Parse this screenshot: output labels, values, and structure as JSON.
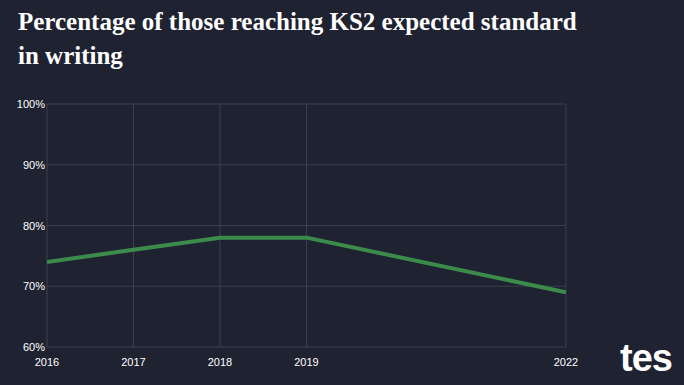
{
  "chart_data": {
    "type": "line",
    "title": "Percentage of those reaching KS2 expected standard in writing",
    "x": [
      2016,
      2017,
      2018,
      2019,
      2022
    ],
    "values": [
      74,
      76,
      78,
      78,
      69
    ],
    "color": "#3b8c4b",
    "xlim": [
      2016,
      2022
    ],
    "xticks": [
      2016,
      2017,
      2018,
      2019,
      2022
    ],
    "ylim": [
      60,
      100
    ],
    "yticks": [
      {
        "value": 60,
        "label": "60%"
      },
      {
        "value": 70,
        "label": "70%"
      },
      {
        "value": 80,
        "label": "80%"
      },
      {
        "value": 90,
        "label": "90%"
      },
      {
        "value": 100,
        "label": "100%"
      }
    ],
    "grid": true,
    "logo": "tes"
  }
}
